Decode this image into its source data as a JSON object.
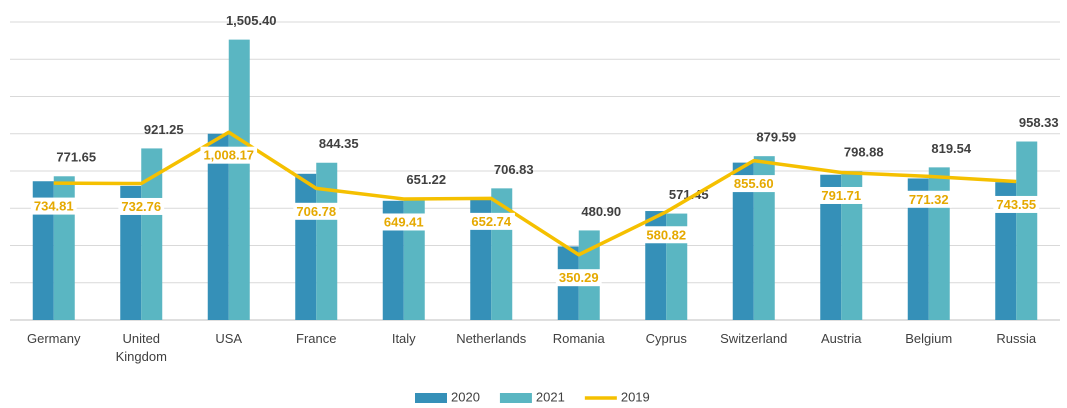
{
  "chart_data": {
    "type": "bar_line",
    "categories": [
      "Germany",
      "United Kingdom",
      "USA",
      "France",
      "Italy",
      "Netherlands",
      "Romania",
      "Cyprus",
      "Switzerland",
      "Austria",
      "Belgium",
      "Russia"
    ],
    "series": [
      {
        "name": "2020",
        "type": "bar",
        "color": "#3590b8",
        "values": [
          745,
          720,
          1000,
          785,
          640,
          645,
          395,
          585,
          845,
          780,
          760,
          740
        ]
      },
      {
        "name": "2021",
        "type": "bar",
        "color": "#5ab6c2",
        "values": [
          771.65,
          921.25,
          1505.4,
          844.35,
          651.22,
          706.83,
          480.9,
          571.45,
          879.59,
          798.88,
          819.54,
          958.33
        ],
        "value_labels": [
          "771.65",
          "921.25",
          "1,505.40",
          "844.35",
          "651.22",
          "706.83",
          "480.90",
          "571.45",
          "879.59",
          "798.88",
          "819.54",
          "958.33"
        ]
      },
      {
        "name": "2019",
        "type": "line",
        "color": "#f5c000",
        "label_color": "#e5a900",
        "values": [
          734.81,
          732.76,
          1008.17,
          706.78,
          649.41,
          652.74,
          350.29,
          580.82,
          855.6,
          791.71,
          771.32,
          743.55
        ],
        "value_labels": [
          "734.81",
          "732.76",
          "1,008.17",
          "706.78",
          "649.41",
          "652.74",
          "350.29",
          "580.82",
          "855.60",
          "791.71",
          "771.32",
          "743.55"
        ]
      }
    ],
    "ylim": [
      0,
      1600
    ],
    "yticks": [
      0,
      200,
      400,
      600,
      800,
      1000,
      1200,
      1400,
      1600
    ],
    "grid": true,
    "legend": "bottom"
  }
}
